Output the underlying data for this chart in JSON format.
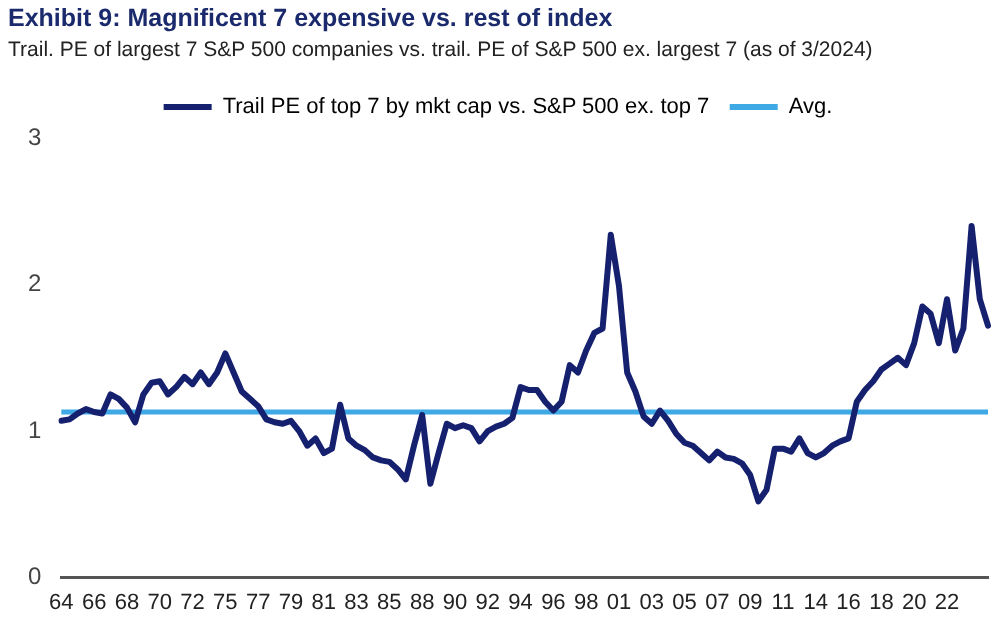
{
  "chart_data": {
    "type": "line",
    "title": "Exhibit 9: Magnificent 7 expensive vs. rest of index",
    "subtitle": "Trail. PE of largest 7 S&P 500 companies vs. trail. PE of S&P 500 ex. largest 7 (as of 3/2024)",
    "categories": [
      "64",
      null,
      null,
      null,
      "66",
      null,
      null,
      null,
      "68",
      null,
      null,
      null,
      "70",
      null,
      null,
      null,
      "72",
      null,
      null,
      null,
      "75",
      null,
      null,
      null,
      "77",
      null,
      null,
      null,
      "79",
      null,
      null,
      null,
      "81",
      null,
      null,
      null,
      "83",
      null,
      null,
      null,
      "85",
      null,
      null,
      null,
      "88",
      null,
      null,
      null,
      "90",
      null,
      null,
      null,
      "92",
      null,
      null,
      null,
      "94",
      null,
      null,
      null,
      "96",
      null,
      null,
      null,
      "98",
      null,
      null,
      null,
      "01",
      null,
      null,
      null,
      "03",
      null,
      null,
      null,
      "05",
      null,
      null,
      null,
      "07",
      null,
      null,
      null,
      "09",
      null,
      null,
      null,
      "11",
      null,
      null,
      null,
      "14",
      null,
      null,
      null,
      "16",
      null,
      null,
      null,
      "18",
      null,
      null,
      null,
      "20",
      null,
      null,
      null,
      "22",
      null,
      null,
      null,
      null,
      null
    ],
    "series": [
      {
        "name": "Trail PE of top 7 by mkt cap vs. S&P 500 ex. top 7",
        "color": "#15206e",
        "values": [
          1.07,
          1.08,
          1.12,
          1.15,
          1.13,
          1.12,
          1.25,
          1.22,
          1.16,
          1.06,
          1.25,
          1.33,
          1.34,
          1.25,
          1.3,
          1.37,
          1.32,
          1.4,
          1.32,
          1.4,
          1.53,
          1.4,
          1.27,
          1.22,
          1.17,
          1.08,
          1.06,
          1.05,
          1.07,
          1.0,
          0.9,
          0.95,
          0.85,
          0.88,
          1.18,
          0.95,
          0.9,
          0.87,
          0.82,
          0.8,
          0.79,
          0.74,
          0.67,
          0.9,
          1.11,
          0.64,
          0.85,
          1.05,
          1.02,
          1.04,
          1.02,
          0.93,
          1.0,
          1.03,
          1.05,
          1.09,
          1.3,
          1.28,
          1.28,
          1.2,
          1.14,
          1.2,
          1.45,
          1.4,
          1.55,
          1.67,
          1.7,
          2.34,
          1.99,
          1.4,
          1.27,
          1.1,
          1.05,
          1.14,
          1.07,
          0.98,
          0.92,
          0.9,
          0.85,
          0.8,
          0.86,
          0.82,
          0.81,
          0.78,
          0.7,
          0.52,
          0.6,
          0.88,
          0.88,
          0.86,
          0.95,
          0.85,
          0.82,
          0.85,
          0.9,
          0.93,
          0.95,
          1.2,
          1.28,
          1.34,
          1.42,
          1.46,
          1.5,
          1.45,
          1.6,
          1.85,
          1.8,
          1.6,
          1.9,
          1.55,
          1.7,
          2.4,
          1.9,
          1.72
        ]
      }
    ],
    "ref_lines": [
      {
        "axis": "y",
        "value": 1.13,
        "label": "Avg.",
        "color": "#3fa9e6"
      }
    ],
    "ylim": [
      0,
      3
    ],
    "yticks": [
      0,
      1,
      2,
      3
    ],
    "grid": false,
    "legend": "top",
    "marker": "none",
    "line_style": "solid"
  }
}
